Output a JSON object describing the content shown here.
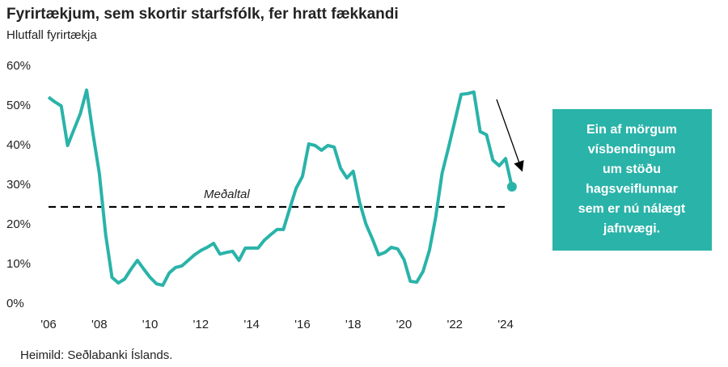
{
  "chart_data": {
    "type": "line",
    "title": "Fyrirtækjum, sem skortir starfsfólk, fer hratt fækkandi",
    "subtitle": "Hlutfall fyrirtækja",
    "source": "Heimild: Seðlabanki Íslands.",
    "x": [
      2006,
      2006.25,
      2006.5,
      2006.75,
      2007,
      2007.25,
      2007.5,
      2007.75,
      2008,
      2008.25,
      2008.5,
      2008.75,
      2009,
      2009.25,
      2009.5,
      2009.75,
      2010,
      2010.25,
      2010.5,
      2010.75,
      2011,
      2011.25,
      2011.5,
      2011.75,
      2012,
      2012.25,
      2012.5,
      2012.75,
      2013,
      2013.25,
      2013.5,
      2013.75,
      2014,
      2014.25,
      2014.5,
      2014.75,
      2015,
      2015.25,
      2015.5,
      2015.75,
      2016,
      2016.25,
      2016.5,
      2016.75,
      2017,
      2017.25,
      2017.5,
      2017.75,
      2018,
      2018.25,
      2018.5,
      2018.75,
      2019,
      2019.25,
      2019.5,
      2019.75,
      2020,
      2020.25,
      2020.5,
      2020.75,
      2021,
      2021.25,
      2021.5,
      2021.75,
      2022,
      2022.25,
      2022.5,
      2022.75,
      2023,
      2023.25,
      2023.5,
      2023.75,
      2024,
      2024.25
    ],
    "series": [
      {
        "name": "Hlutfall fyrirtækja",
        "color": "#2ab3a9",
        "values": [
          52.2,
          51,
          50,
          40,
          44,
          48,
          54,
          43,
          33,
          17.5,
          6.7,
          5.3,
          6.3,
          8.8,
          11,
          8.8,
          6.7,
          5.1,
          4.7,
          7.8,
          9.2,
          9.6,
          11,
          12.4,
          13.5,
          14.3,
          15.3,
          12.6,
          13,
          13.3,
          11,
          14.1,
          14.1,
          14.1,
          16.1,
          17.5,
          18.8,
          18.8,
          24.1,
          29.2,
          32.2,
          40.4,
          40,
          38.8,
          40,
          39.6,
          34.3,
          31.8,
          33.5,
          25.7,
          20.2,
          16.5,
          12.4,
          13,
          14.3,
          13.9,
          11.2,
          5.7,
          5.5,
          8.2,
          13.5,
          22,
          33,
          39.4,
          46.1,
          52.9,
          53.1,
          53.5,
          43.5,
          42.7,
          36.3,
          34.9,
          36.7,
          29.6
        ]
      }
    ],
    "mean": {
      "label": "Meðaltal",
      "value": 24.5
    },
    "callout": [
      "Ein af mörgum",
      "vísbendingum",
      "um stöðu",
      "hagsveiflunnar",
      "sem er nú nálægt",
      "jafnvægi."
    ],
    "xlim": [
      2006,
      2024.5
    ],
    "xticks": [
      {
        "value": 2006,
        "label": "'06"
      },
      {
        "value": 2008,
        "label": "'08"
      },
      {
        "value": 2010,
        "label": "'10"
      },
      {
        "value": 2012,
        "label": "'12"
      },
      {
        "value": 2014,
        "label": "'14"
      },
      {
        "value": 2016,
        "label": "'16"
      },
      {
        "value": 2018,
        "label": "'18"
      },
      {
        "value": 2020,
        "label": "'20"
      },
      {
        "value": 2022,
        "label": "'22"
      },
      {
        "value": 2024,
        "label": "'24"
      }
    ],
    "ylim": [
      0,
      60
    ],
    "yticks": [
      {
        "value": 0,
        "label": "0%"
      },
      {
        "value": 10,
        "label": "10%"
      },
      {
        "value": 20,
        "label": "20%"
      },
      {
        "value": 30,
        "label": "30%"
      },
      {
        "value": 40,
        "label": "40%"
      },
      {
        "value": 50,
        "label": "50%"
      },
      {
        "value": 60,
        "label": "60%"
      }
    ],
    "grid": false
  }
}
